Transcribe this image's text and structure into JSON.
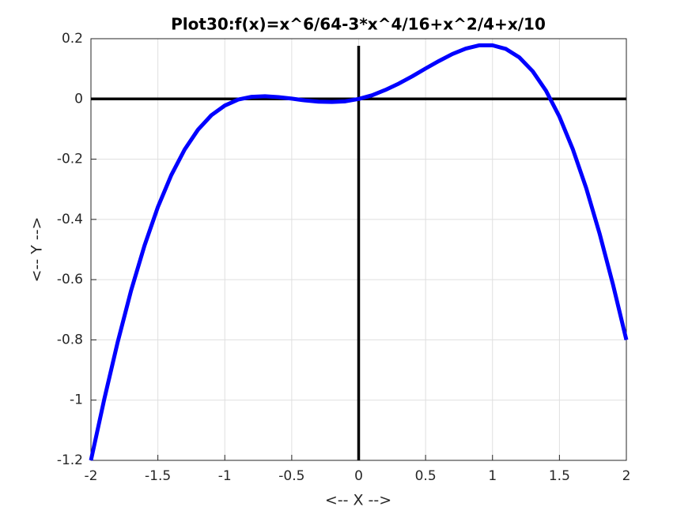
{
  "chart_data": {
    "type": "line",
    "title": "Plot30:f(x)=x^6/64-3*x^4/16+x^2/4+x/10",
    "x_label": "<-- X -->",
    "y_label": "<-- Y -->",
    "x": [
      -2,
      -1.9,
      -1.8,
      -1.7,
      -1.6,
      -1.5,
      -1.4,
      -1.3,
      -1.2,
      -1.1,
      -1,
      -0.9,
      -0.8,
      -0.7,
      -0.6,
      -0.5,
      -0.4,
      -0.3,
      -0.2,
      -0.1,
      0,
      0.1,
      0.2,
      0.3,
      0.4,
      0.5,
      0.6,
      0.7,
      0.8,
      0.9,
      1,
      1.1,
      1.2,
      1.3,
      1.4,
      1.5,
      1.6,
      1.7,
      1.8,
      1.9,
      2
    ],
    "series": [
      {
        "name": "f(x)",
        "color": "#0000ff",
        "values": [
          -1.2,
          -0.996,
          -0.807,
          -0.636,
          -0.487,
          -0.359,
          -0.253,
          -0.168,
          -0.102,
          -0.054,
          -0.022,
          -0.002,
          0.007,
          0.009,
          0.006,
          0.001,
          -0.005,
          -0.009,
          -0.01,
          -0.008,
          0,
          0.012,
          0.03,
          0.051,
          0.075,
          0.101,
          0.126,
          0.149,
          0.167,
          0.178,
          0.178,
          0.166,
          0.138,
          0.092,
          0.027,
          -0.059,
          -0.167,
          -0.296,
          -0.447,
          -0.616,
          -0.8
        ]
      }
    ],
    "xlim": [
      -2,
      2
    ],
    "ylim": [
      -1.2,
      0.2
    ],
    "xticks": [
      -2,
      -1.5,
      -1,
      -0.5,
      0,
      0.5,
      1,
      1.5,
      2
    ],
    "yticks": [
      -1.2,
      -1,
      -0.8,
      -0.6,
      -0.4,
      -0.2,
      0,
      0.2
    ],
    "grid": true
  }
}
